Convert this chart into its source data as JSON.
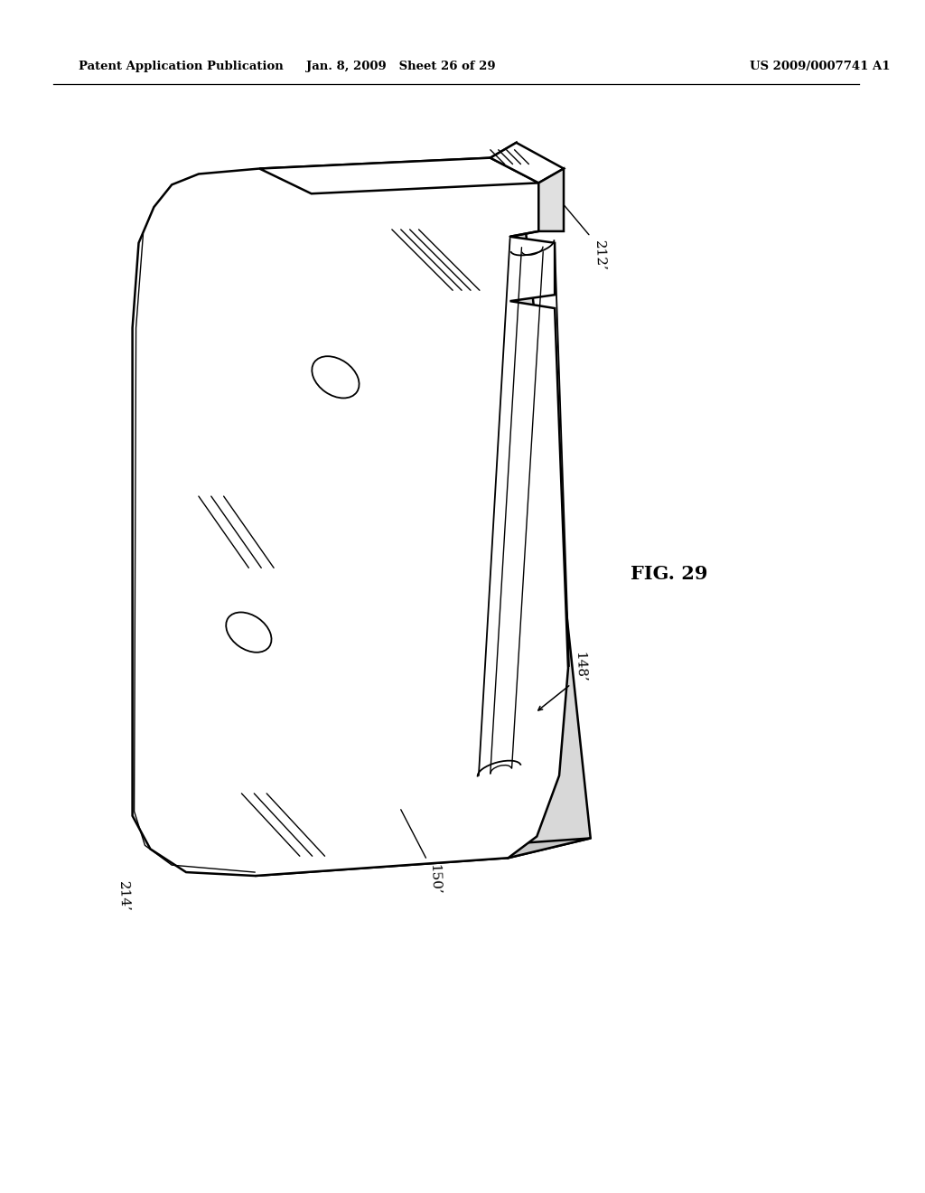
{
  "header_left": "Patent Application Publication",
  "header_mid": "Jan. 8, 2009   Sheet 26 of 29",
  "header_right": "US 2009/0007741 A1",
  "fig_label": "FIG. 29",
  "label_212": "212’",
  "label_148": "148’",
  "label_150": "150’",
  "label_214": "214’",
  "bg_color": "#ffffff",
  "line_color": "#000000"
}
